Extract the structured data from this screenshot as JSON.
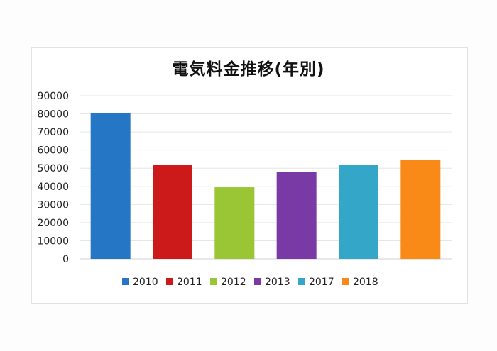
{
  "chart_data": {
    "type": "bar",
    "title": "電気料金推移(年別)",
    "xlabel": "",
    "ylabel": "",
    "categories": [
      "2010",
      "2011",
      "2012",
      "2013",
      "2017",
      "2018"
    ],
    "values": [
      80500,
      51800,
      39500,
      47800,
      52000,
      54500
    ],
    "colors": [
      "#2676c6",
      "#cc1a1a",
      "#9ac636",
      "#7a3aa6",
      "#34a7c9",
      "#f98a17"
    ],
    "ylim": [
      0,
      90000
    ],
    "yticks": [
      "0",
      "10000",
      "20000",
      "30000",
      "40000",
      "50000",
      "60000",
      "70000",
      "80000",
      "90000"
    ],
    "grid": true,
    "legend": "bottom"
  }
}
